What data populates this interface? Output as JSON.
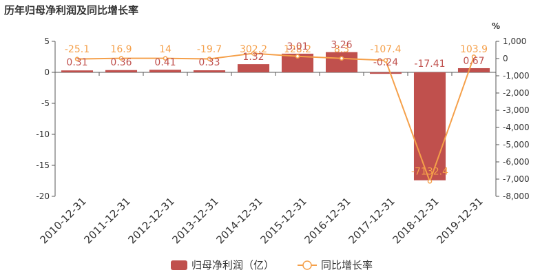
{
  "chart_data": {
    "type": "bar",
    "title": "历年归母净利润及同比增长率",
    "categories": [
      "2010-12-31",
      "2011-12-31",
      "2012-12-31",
      "2013-12-31",
      "2014-12-31",
      "2015-12-31",
      "2016-12-31",
      "2017-12-31",
      "2018-12-31",
      "2019-12-31"
    ],
    "series": [
      {
        "name": "归母净利润（亿）",
        "type": "bar",
        "axis": "left",
        "values": [
          0.31,
          0.36,
          0.41,
          0.33,
          1.32,
          3.01,
          3.26,
          -0.24,
          -17.41,
          0.67
        ],
        "labels": [
          "0.31",
          "0.36",
          "0.41",
          "0.33",
          "1.32",
          "3.01",
          "3.26",
          "-0.24",
          "-17.41",
          "0.67"
        ],
        "color": "#c0504d"
      },
      {
        "name": "同比增长率",
        "type": "line",
        "axis": "right",
        "values": [
          -25.1,
          16.9,
          14,
          -19.7,
          302.2,
          128.2,
          8.3,
          -107.4,
          -7132.4,
          103.9
        ],
        "labels": [
          "-25.1",
          "16.9",
          "14",
          "-19.7",
          "302.2",
          "128.2",
          "8.3",
          "-107.4",
          "-7132.4",
          "103.9"
        ],
        "color": "#f5a04a"
      }
    ],
    "y_left": {
      "ylim": [
        -20,
        5
      ],
      "ticks": [
        5,
        0,
        -5,
        -10,
        -15,
        -20
      ],
      "tick_labels": [
        "5",
        "0",
        "-5",
        "-10",
        "-15",
        "-20"
      ]
    },
    "y_right": {
      "ylim": [
        -8000,
        1000
      ],
      "unit": "%",
      "ticks": [
        1000,
        0,
        -1000,
        -2000,
        -3000,
        -4000,
        -5000,
        -6000,
        -7000,
        -8000
      ],
      "tick_labels": [
        "1,000",
        "0",
        "-1,000",
        "-2,000",
        "-3,000",
        "-4,000",
        "-5,000",
        "-6,000",
        "-7,000",
        "-8,000"
      ]
    },
    "legend_position": "bottom-center",
    "grid": false
  }
}
